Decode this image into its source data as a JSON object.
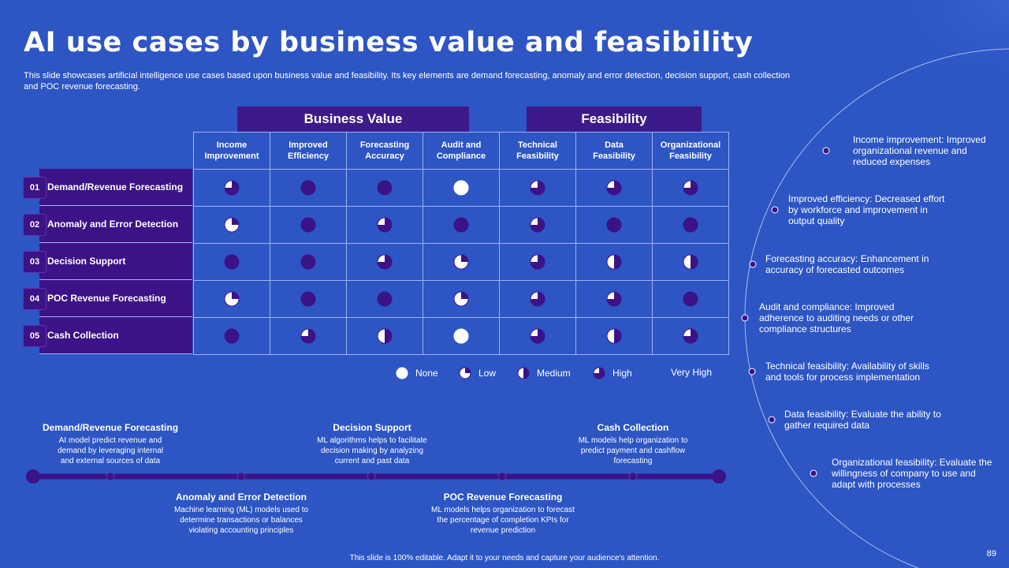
{
  "title": "AI use cases by business value and feasibility",
  "subtitle": "This slide showcases artificial intelligence use cases based upon business value and feasibility. Its key elements are demand forecasting, anomaly and error detection, decision support, cash collection and POC revenue forecasting.",
  "group_headers": {
    "business_value": "Business Value",
    "feasibility": "Feasibility"
  },
  "columns": [
    "Income\nImprovement",
    "Improved\nEfficiency",
    "Forecasting\nAccuracy",
    "Audit and\nCompliance",
    "Technical\nFeasibility",
    "Data\nFeasibility",
    "Organizational\nFeasibility"
  ],
  "rows": [
    {
      "num": "01",
      "label": "Demand/Revenue Forecasting",
      "levels": [
        3,
        4,
        4,
        0,
        3,
        3,
        3
      ]
    },
    {
      "num": "02",
      "label": "Anomaly and Error Detection",
      "levels": [
        1,
        4,
        3,
        4,
        3,
        4,
        4
      ]
    },
    {
      "num": "03",
      "label": "Decision Support",
      "levels": [
        4,
        4,
        3,
        1,
        3,
        2,
        2
      ]
    },
    {
      "num": "04",
      "label": "POC Revenue Forecasting",
      "levels": [
        1,
        4,
        4,
        1,
        3,
        3,
        4
      ]
    },
    {
      "num": "05",
      "label": "Cash Collection",
      "levels": [
        4,
        3,
        2,
        0,
        3,
        2,
        3
      ]
    }
  ],
  "legend": [
    {
      "label": "None",
      "level": 0
    },
    {
      "label": "Low",
      "level": 1
    },
    {
      "label": "Medium",
      "level": 2
    },
    {
      "label": "High",
      "level": 3
    },
    {
      "label": "Very High",
      "level": 4
    }
  ],
  "timeline": {
    "top": [
      {
        "title": "Demand/Revenue Forecasting",
        "desc": "AI model predict revenue and demand by leveraging internal and external sources of data"
      },
      {
        "title": "Decision Support",
        "desc": "ML algorithms helps to facilitate decision making by analyzing current and past data"
      },
      {
        "title": "Cash Collection",
        "desc": "ML models help organization to predict payment and cashflow forecasting"
      }
    ],
    "bottom": [
      {
        "title": "Anomaly and Error Detection",
        "desc": "Machine learning (ML) models used to determine transactions or balances violating accounting principles"
      },
      {
        "title": "POC Revenue Forecasting",
        "desc": "ML models helps organization to forecast the percentage of completion KPIs for revenue prediction"
      }
    ]
  },
  "definitions": [
    "Income improvement: Improved organizational revenue and reduced expenses",
    "Improved efficiency: Decreased effort by workforce and improvement in output quality",
    "Forecasting accuracy: Enhancement in accuracy of forecasted outcomes",
    "Audit and compliance: Improved adherence to auditing needs or other compliance structures",
    "Technical feasibility: Availability of skills and tools for process implementation",
    "Data feasibility: Evaluate the ability to gather required data",
    "Organizational feasibility: Evaluate the willingness of company to use and adapt with processes"
  ],
  "footer": "This slide is 100% editable. Adapt it to your needs and capture your audience's attention.",
  "page_number": "89",
  "colors": {
    "background": "#2d55c4",
    "purple": "#3c1387",
    "ball_fill": "#3c1387",
    "ball_empty": "#ffffff"
  }
}
